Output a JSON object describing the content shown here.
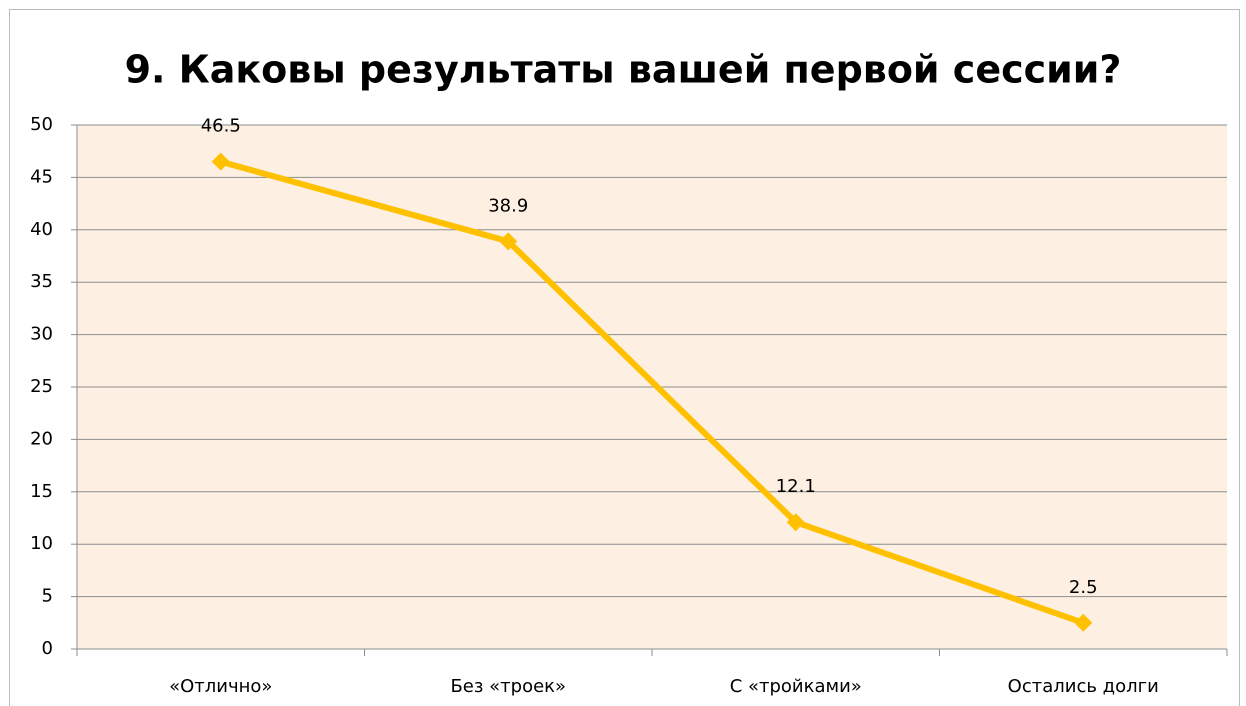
{
  "chart_data": {
    "type": "line",
    "title": "9. Каковы результаты вашей первой сессии?",
    "categories": [
      "«Отлично»",
      "Без «троек»",
      "С «тройками»",
      "Остались долги"
    ],
    "values": [
      46.5,
      38.9,
      12.1,
      2.5
    ],
    "color": "#ffc000",
    "ylim": [
      0,
      50
    ],
    "yticks": [
      0,
      5,
      10,
      15,
      20,
      25,
      30,
      35,
      40,
      45,
      50
    ],
    "grid": true
  }
}
